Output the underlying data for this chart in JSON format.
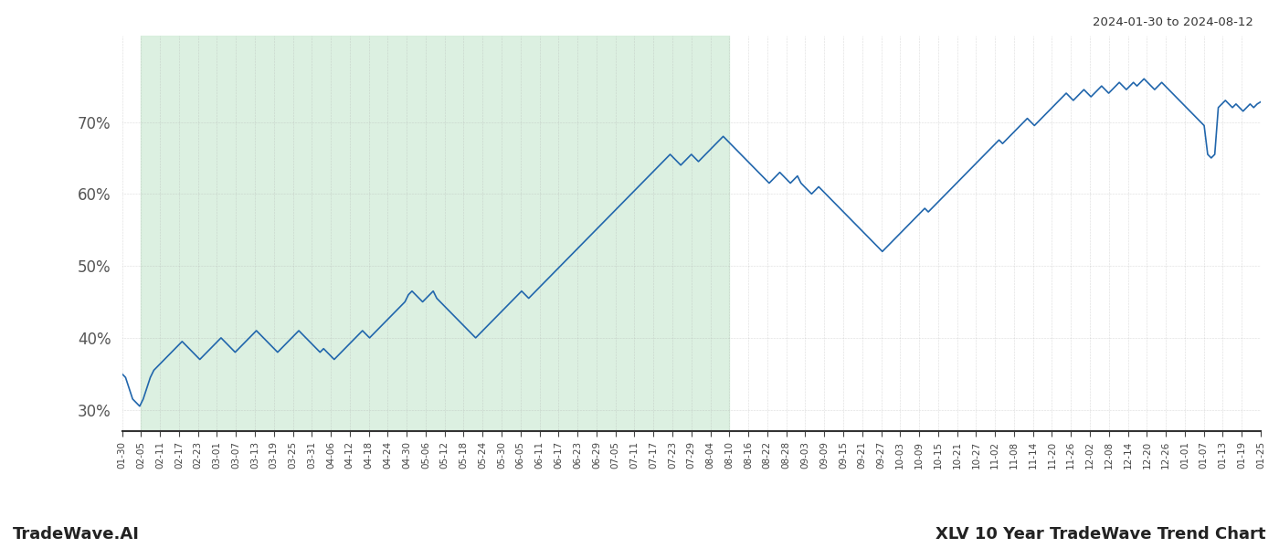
{
  "title_top_right": "2024-01-30 to 2024-08-12",
  "title_bottom_left": "TradeWave.AI",
  "title_bottom_right": "XLV 10 Year TradeWave Trend Chart",
  "line_color": "#2166ac",
  "line_width": 1.2,
  "shade_color": "#d4edda",
  "shade_alpha": 0.8,
  "ylim": [
    27,
    82
  ],
  "yticks": [
    30,
    40,
    50,
    60,
    70
  ],
  "background_color": "#ffffff",
  "grid_color": "#aaaaaa",
  "x_labels": [
    "01-30",
    "02-05",
    "02-11",
    "02-17",
    "02-23",
    "03-01",
    "03-07",
    "03-13",
    "03-19",
    "03-25",
    "03-31",
    "04-06",
    "04-12",
    "04-18",
    "04-24",
    "04-30",
    "05-06",
    "05-12",
    "05-18",
    "05-24",
    "05-30",
    "06-05",
    "06-11",
    "06-17",
    "06-23",
    "06-29",
    "07-05",
    "07-11",
    "07-17",
    "07-23",
    "07-29",
    "08-04",
    "08-10",
    "08-16",
    "08-22",
    "08-28",
    "09-03",
    "09-09",
    "09-15",
    "09-21",
    "09-27",
    "10-03",
    "10-09",
    "10-15",
    "10-21",
    "10-27",
    "11-02",
    "11-08",
    "11-14",
    "11-20",
    "11-26",
    "12-02",
    "12-08",
    "12-14",
    "12-20",
    "12-26",
    "01-01",
    "01-07",
    "01-13",
    "01-19",
    "01-25"
  ],
  "shade_start_label": "02-05",
  "shade_end_label": "08-10",
  "y_values": [
    35.0,
    34.5,
    33.0,
    31.5,
    31.0,
    30.5,
    31.5,
    33.0,
    34.5,
    35.5,
    36.0,
    36.5,
    37.0,
    37.5,
    38.0,
    38.5,
    39.0,
    39.5,
    39.0,
    38.5,
    38.0,
    37.5,
    37.0,
    37.5,
    38.0,
    38.5,
    39.0,
    39.5,
    40.0,
    39.5,
    39.0,
    38.5,
    38.0,
    38.5,
    39.0,
    39.5,
    40.0,
    40.5,
    41.0,
    40.5,
    40.0,
    39.5,
    39.0,
    38.5,
    38.0,
    38.5,
    39.0,
    39.5,
    40.0,
    40.5,
    41.0,
    40.5,
    40.0,
    39.5,
    39.0,
    38.5,
    38.0,
    38.5,
    38.0,
    37.5,
    37.0,
    37.5,
    38.0,
    38.5,
    39.0,
    39.5,
    40.0,
    40.5,
    41.0,
    40.5,
    40.0,
    40.5,
    41.0,
    41.5,
    42.0,
    42.5,
    43.0,
    43.5,
    44.0,
    44.5,
    45.0,
    46.0,
    46.5,
    46.0,
    45.5,
    45.0,
    45.5,
    46.0,
    46.5,
    45.5,
    45.0,
    44.5,
    44.0,
    43.5,
    43.0,
    42.5,
    42.0,
    41.5,
    41.0,
    40.5,
    40.0,
    40.5,
    41.0,
    41.5,
    42.0,
    42.5,
    43.0,
    43.5,
    44.0,
    44.5,
    45.0,
    45.5,
    46.0,
    46.5,
    46.0,
    45.5,
    46.0,
    46.5,
    47.0,
    47.5,
    48.0,
    48.5,
    49.0,
    49.5,
    50.0,
    50.5,
    51.0,
    51.5,
    52.0,
    52.5,
    53.0,
    53.5,
    54.0,
    54.5,
    55.0,
    55.5,
    56.0,
    56.5,
    57.0,
    57.5,
    58.0,
    58.5,
    59.0,
    59.5,
    60.0,
    60.5,
    61.0,
    61.5,
    62.0,
    62.5,
    63.0,
    63.5,
    64.0,
    64.5,
    65.0,
    65.5,
    65.0,
    64.5,
    64.0,
    64.5,
    65.0,
    65.5,
    65.0,
    64.5,
    65.0,
    65.5,
    66.0,
    66.5,
    67.0,
    67.5,
    68.0,
    67.5,
    67.0,
    66.5,
    66.0,
    65.5,
    65.0,
    64.5,
    64.0,
    63.5,
    63.0,
    62.5,
    62.0,
    61.5,
    62.0,
    62.5,
    63.0,
    62.5,
    62.0,
    61.5,
    62.0,
    62.5,
    61.5,
    61.0,
    60.5,
    60.0,
    60.5,
    61.0,
    60.5,
    60.0,
    59.5,
    59.0,
    58.5,
    58.0,
    57.5,
    57.0,
    56.5,
    56.0,
    55.5,
    55.0,
    54.5,
    54.0,
    53.5,
    53.0,
    52.5,
    52.0,
    52.5,
    53.0,
    53.5,
    54.0,
    54.5,
    55.0,
    55.5,
    56.0,
    56.5,
    57.0,
    57.5,
    58.0,
    57.5,
    58.0,
    58.5,
    59.0,
    59.5,
    60.0,
    60.5,
    61.0,
    61.5,
    62.0,
    62.5,
    63.0,
    63.5,
    64.0,
    64.5,
    65.0,
    65.5,
    66.0,
    66.5,
    67.0,
    67.5,
    67.0,
    67.5,
    68.0,
    68.5,
    69.0,
    69.5,
    70.0,
    70.5,
    70.0,
    69.5,
    70.0,
    70.5,
    71.0,
    71.5,
    72.0,
    72.5,
    73.0,
    73.5,
    74.0,
    73.5,
    73.0,
    73.5,
    74.0,
    74.5,
    74.0,
    73.5,
    74.0,
    74.5,
    75.0,
    74.5,
    74.0,
    74.5,
    75.0,
    75.5,
    75.0,
    74.5,
    75.0,
    75.5,
    75.0,
    75.5,
    76.0,
    75.5,
    75.0,
    74.5,
    75.0,
    75.5,
    75.0,
    74.5,
    74.0,
    73.5,
    73.0,
    72.5,
    72.0,
    71.5,
    71.0,
    70.5,
    70.0,
    69.5,
    65.5,
    65.0,
    65.5,
    72.0,
    72.5,
    73.0,
    72.5,
    72.0,
    72.5,
    72.0,
    71.5,
    72.0,
    72.5,
    72.0,
    72.5,
    72.8
  ]
}
